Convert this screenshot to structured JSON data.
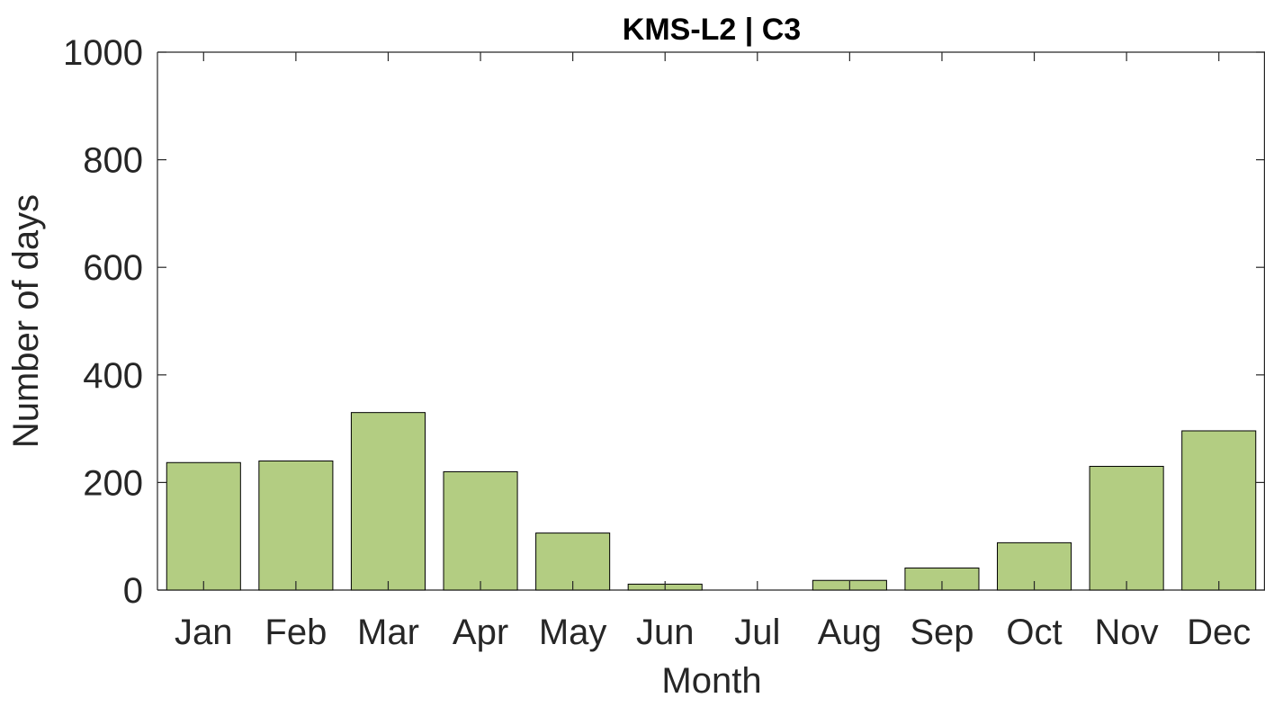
{
  "chart_data": {
    "type": "bar",
    "title": "KMS-L2 | C3",
    "xlabel": "Month",
    "ylabel": "Number of days",
    "categories": [
      "Jan",
      "Feb",
      "Mar",
      "Apr",
      "May",
      "Jun",
      "Jul",
      "Aug",
      "Sep",
      "Oct",
      "Nov",
      "Dec"
    ],
    "values": [
      237,
      240,
      330,
      220,
      106,
      11,
      0,
      18,
      41,
      88,
      230,
      296
    ],
    "ylim": [
      0,
      1000
    ],
    "yticks": [
      0,
      200,
      400,
      600,
      800,
      1000
    ],
    "ytick_labels": [
      "0",
      "200",
      "400",
      "600",
      "800",
      "1000"
    ],
    "grid": false,
    "legend": "none",
    "colors": {
      "bar_fill": "#b3cd82",
      "bar_edge": "#000000",
      "axis": "#262626",
      "text": "#262626",
      "title": "#000000"
    }
  }
}
